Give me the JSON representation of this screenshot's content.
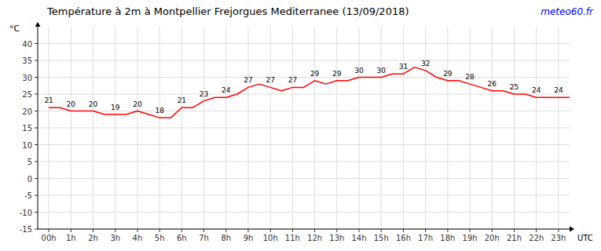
{
  "chart_data": {
    "type": "line",
    "title": "Température à 2m à Montpellier Frejorgues Mediterranee (13/09/2018)",
    "annotations": [
      {
        "text": "meteo60.fr",
        "color": "#0000ff"
      }
    ],
    "x_label": "UTC",
    "y_label": "°C",
    "x": [
      0,
      0.5,
      1,
      1.5,
      2,
      2.5,
      3,
      3.5,
      4,
      4.5,
      5,
      5.5,
      6,
      6.5,
      7,
      7.5,
      8,
      8.5,
      9,
      9.5,
      10,
      10.5,
      11,
      11.5,
      12,
      12.5,
      13,
      13.5,
      14,
      14.5,
      15,
      15.5,
      16,
      16.5,
      17,
      17.5,
      18,
      18.5,
      19,
      19.5,
      20,
      20.5,
      21,
      21.5,
      22,
      22.5,
      23,
      23.5
    ],
    "series": [
      {
        "color": "#ff0000",
        "values": [
          21,
          21,
          20,
          20,
          20,
          19,
          19,
          19,
          20,
          19,
          18,
          18,
          21,
          21,
          23,
          24,
          24,
          25,
          27,
          28,
          27,
          26,
          27,
          27,
          29,
          28,
          29,
          29,
          30,
          30,
          30,
          31,
          31,
          33,
          32,
          30,
          29,
          29,
          28,
          27,
          26,
          26,
          25,
          25,
          24,
          24,
          24,
          24
        ]
      }
    ],
    "xlim": [
      -0.5,
      23.5
    ],
    "xticks": [
      {
        "value": 0,
        "label": "00h"
      },
      {
        "value": 1,
        "label": "1h"
      },
      {
        "value": 2,
        "label": "2h"
      },
      {
        "value": 3,
        "label": "3h"
      },
      {
        "value": 4,
        "label": "4h"
      },
      {
        "value": 5,
        "label": "5h"
      },
      {
        "value": 6,
        "label": "6h"
      },
      {
        "value": 7,
        "label": "7h"
      },
      {
        "value": 8,
        "label": "8h"
      },
      {
        "value": 9,
        "label": "9h"
      },
      {
        "value": 10,
        "label": "10h"
      },
      {
        "value": 11,
        "label": "11h"
      },
      {
        "value": 12,
        "label": "12h"
      },
      {
        "value": 13,
        "label": "13h"
      },
      {
        "value": 14,
        "label": "14h"
      },
      {
        "value": 15,
        "label": "15h"
      },
      {
        "value": 16,
        "label": "16h"
      },
      {
        "value": 17,
        "label": "17h"
      },
      {
        "value": 18,
        "label": "18h"
      },
      {
        "value": 19,
        "label": "19h"
      },
      {
        "value": 20,
        "label": "20h"
      },
      {
        "value": 21,
        "label": "21h"
      },
      {
        "value": 22,
        "label": "22h"
      },
      {
        "value": 23,
        "label": "23h"
      }
    ],
    "ylim": [
      -15,
      45
    ],
    "yticks": [
      -15,
      -10,
      -5,
      0,
      5,
      10,
      15,
      20,
      25,
      30,
      35,
      40
    ],
    "grid": true,
    "data_labels": true
  }
}
